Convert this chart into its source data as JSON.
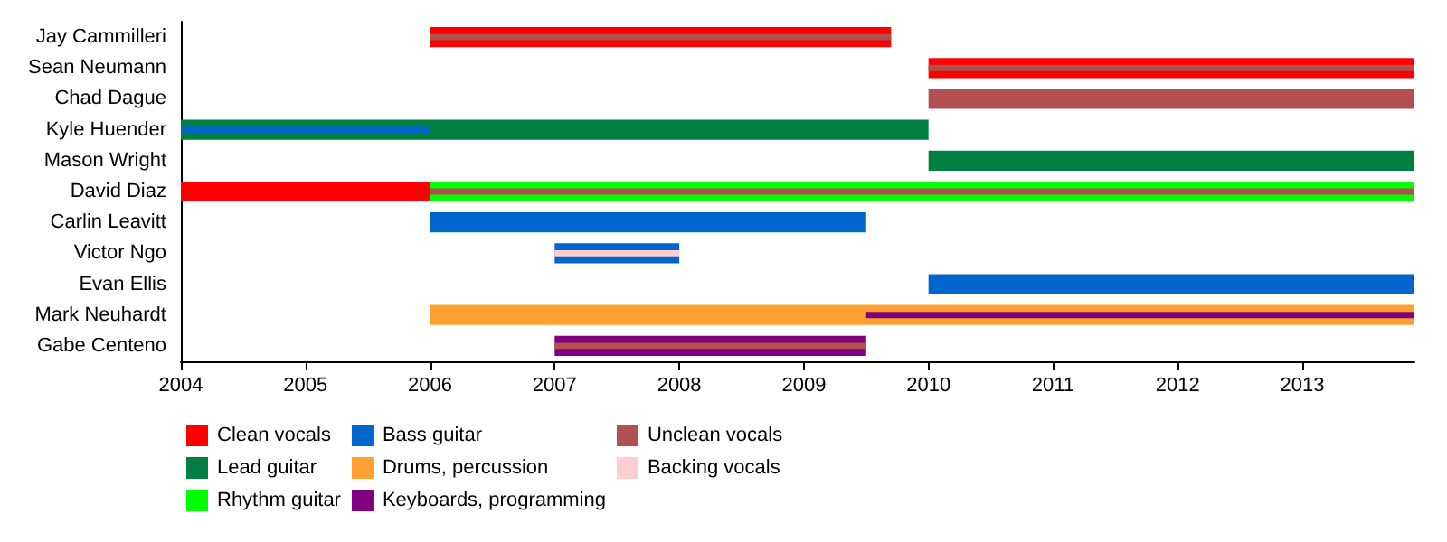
{
  "chart_data": {
    "type": "bar",
    "orientation": "horizontal",
    "categories": [
      "Jay Cammilleri",
      "Sean Neumann",
      "Chad Dague",
      "Kyle Huender",
      "Mason Wright",
      "David Diaz",
      "Carlin Leavitt",
      "Victor Ngo",
      "Evan Ellis",
      "Mark Neuhardt",
      "Gabe Centeno"
    ],
    "series": [
      {
        "name": "Clean vocals",
        "color": "#ff0000",
        "base": [
          2006,
          2010,
          null,
          null,
          null,
          2004,
          null,
          null,
          null,
          null,
          null
        ],
        "values": [
          3.7,
          3.9,
          null,
          null,
          null,
          2,
          null,
          null,
          null,
          null,
          null
        ]
      },
      {
        "name": "Lead guitar",
        "color": "#008040",
        "base": [
          null,
          null,
          null,
          2004,
          2010,
          null,
          null,
          null,
          null,
          null,
          null
        ],
        "values": [
          null,
          null,
          null,
          6,
          3.9,
          null,
          null,
          null,
          null,
          null,
          null
        ]
      },
      {
        "name": "Rhythm guitar",
        "color": "#00ff00",
        "base": [
          null,
          null,
          null,
          null,
          null,
          2006,
          null,
          null,
          null,
          null,
          null
        ],
        "values": [
          null,
          null,
          null,
          null,
          null,
          7.9,
          null,
          null,
          null,
          null,
          null
        ]
      },
      {
        "name": "Bass guitar",
        "color": "#0066cc",
        "base": [
          null,
          null,
          null,
          2004,
          null,
          null,
          2006,
          2007,
          2010,
          null,
          null
        ],
        "values": [
          null,
          null,
          null,
          2,
          null,
          null,
          3.5,
          1,
          3.9,
          null,
          null
        ]
      },
      {
        "name": "Drums, percussion",
        "color": "#ffa030",
        "base": [
          null,
          null,
          null,
          null,
          null,
          null,
          null,
          null,
          null,
          2006,
          null
        ],
        "values": [
          null,
          null,
          null,
          null,
          null,
          null,
          null,
          null,
          null,
          7.9,
          null
        ]
      },
      {
        "name": "Keyboards, programming",
        "color": "#800080",
        "base": [
          null,
          null,
          null,
          null,
          null,
          null,
          null,
          null,
          null,
          2009.5,
          2007
        ],
        "values": [
          null,
          null,
          null,
          null,
          null,
          null,
          null,
          null,
          null,
          4.4,
          2.5
        ]
      },
      {
        "name": "Unclean vocals",
        "color": "#b05050",
        "base": [
          2006,
          2010,
          2010,
          null,
          null,
          2006,
          null,
          null,
          null,
          null,
          2007
        ],
        "values": [
          3.7,
          3.9,
          3.9,
          null,
          null,
          7.9,
          null,
          null,
          null,
          null,
          2.5
        ]
      },
      {
        "name": "Backing vocals",
        "color": "#ffccd0",
        "base": [
          null,
          null,
          null,
          null,
          null,
          null,
          null,
          2007,
          null,
          null,
          null
        ],
        "values": [
          null,
          null,
          null,
          null,
          null,
          null,
          null,
          1,
          null,
          null,
          null
        ]
      }
    ],
    "xlim": [
      2004,
      2013.9
    ],
    "xticks": [
      2004,
      2005,
      2006,
      2007,
      2008,
      2009,
      2010,
      2011,
      2012,
      2013
    ],
    "grid": false,
    "legend": "bottom"
  }
}
